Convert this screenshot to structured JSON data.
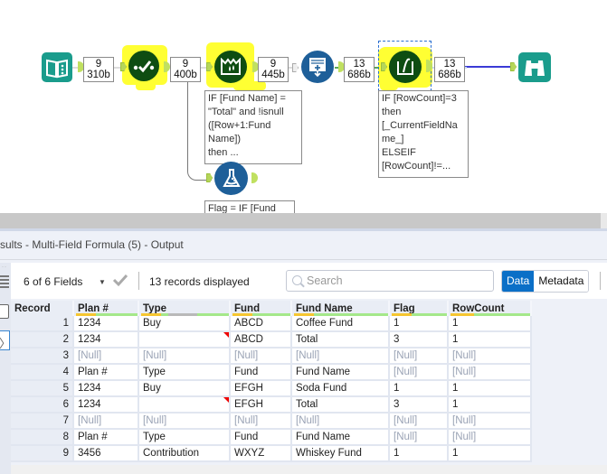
{
  "workflow": {
    "tools": [
      {
        "id": "input",
        "icon": "book-input-icon",
        "color": "#1a9c8c"
      },
      {
        "id": "select",
        "icon": "checkmark-select-icon",
        "color": "#0e4d12",
        "highlighted": true
      },
      {
        "id": "formula",
        "icon": "formula-crown-icon",
        "color": "#0e4d12",
        "highlighted": true
      },
      {
        "id": "union",
        "icon": "append-rows-icon",
        "color": "#1e5f99"
      },
      {
        "id": "multi-field-formula",
        "icon": "multi-field-formula-icon",
        "color": "#0e4d12",
        "highlighted": true,
        "selected": true
      },
      {
        "id": "browse",
        "icon": "binoculars-browse-icon",
        "color": "#1a9c8c"
      },
      {
        "id": "lab-formula",
        "icon": "flask-icon",
        "color": "#1e5f99"
      }
    ],
    "badges": [
      {
        "count": "9",
        "size": "310b"
      },
      {
        "count": "9",
        "size": "400b"
      },
      {
        "count": "9",
        "size": "445b"
      },
      {
        "count": "13",
        "size": "686b"
      },
      {
        "count": "13",
        "size": "686b"
      }
    ],
    "annotations": {
      "formula": "IF [Fund Name] =\n\"Total\" and !isnull\n([Row+1:Fund\nName])\nthen ...",
      "multi_field": "IF [RowCount]=3\nthen\n[_CurrentFieldNa\nme_]\nELSEIF\n[RowCount]!=...",
      "flask": "Flag = IF [Fund"
    }
  },
  "results": {
    "title": "sults - Multi-Field Formula (5) - Output",
    "fields_selector": "6 of 6 Fields",
    "records_displayed": "13 records displayed",
    "search_placeholder": "Search",
    "tabs": [
      {
        "label": "Data",
        "active": true
      },
      {
        "label": "Metadata",
        "active": false
      }
    ],
    "columns": [
      "Record",
      "Plan #",
      "Type",
      "Fund",
      "Fund Name",
      "Flag",
      "RowCount"
    ],
    "rows": [
      {
        "record": "1",
        "plan": "1234",
        "type": "Buy",
        "fund": "ABCD",
        "fund_name": "Coffee Fund",
        "flag": "1",
        "rowcount": "1"
      },
      {
        "record": "2",
        "plan": "1234",
        "type": "",
        "fund": "ABCD",
        "fund_name": "Total",
        "flag": "3",
        "rowcount": "1"
      },
      {
        "record": "3",
        "plan": "[Null]",
        "type": "[Null]",
        "fund": "[Null]",
        "fund_name": "[Null]",
        "flag": "[Null]",
        "rowcount": "[Null]"
      },
      {
        "record": "4",
        "plan": "Plan #",
        "type": "Type",
        "fund": "Fund",
        "fund_name": "Fund Name",
        "flag": "[Null]",
        "rowcount": "[Null]"
      },
      {
        "record": "5",
        "plan": "1234",
        "type": "Buy",
        "fund": "EFGH",
        "fund_name": "Soda Fund",
        "flag": "1",
        "rowcount": "1"
      },
      {
        "record": "6",
        "plan": "1234",
        "type": "",
        "fund": "EFGH",
        "fund_name": "Total",
        "flag": "3",
        "rowcount": "1"
      },
      {
        "record": "7",
        "plan": "[Null]",
        "type": "[Null]",
        "fund": "[Null]",
        "fund_name": "[Null]",
        "flag": "[Null]",
        "rowcount": "[Null]"
      },
      {
        "record": "8",
        "plan": "Plan #",
        "type": "Type",
        "fund": "Fund",
        "fund_name": "Fund Name",
        "flag": "[Null]",
        "rowcount": "[Null]"
      },
      {
        "record": "9",
        "plan": "3456",
        "type": "Contribution",
        "fund": "WXYZ",
        "fund_name": "Whiskey Fund",
        "flag": "1",
        "rowcount": "1"
      }
    ]
  },
  "colors": {
    "accent_blue": "#0b6fc7",
    "highlight_yellow": "#ffff33",
    "null_text": "#9aa3b5",
    "connection_selected": "#3a3ad6"
  }
}
